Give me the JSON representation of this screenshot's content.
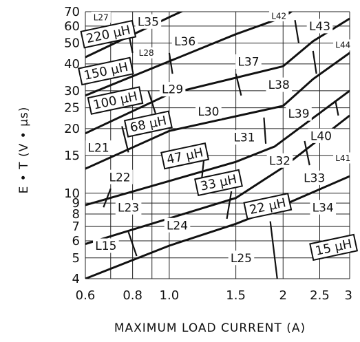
{
  "chart_data": {
    "type": "line",
    "title": "",
    "xlabel": "MAXIMUM LOAD CURRENT (A)",
    "ylabel": "E • T (V • μs)",
    "xscale": "log",
    "yscale": "log",
    "xlim": [
      0.6,
      3
    ],
    "ylim": [
      4,
      70
    ],
    "grid": true,
    "x_ticks": [
      {
        "value": 0.6,
        "label": "0.6"
      },
      {
        "value": 0.8,
        "label": "0.8"
      },
      {
        "value": 1.0,
        "label": "1.0"
      },
      {
        "value": 1.5,
        "label": "1.5"
      },
      {
        "value": 2.0,
        "label": "2"
      },
      {
        "value": 2.5,
        "label": "2.5"
      },
      {
        "value": 3.0,
        "label": "3"
      }
    ],
    "x_gridlines": [
      0.7,
      0.8,
      0.9,
      1.0,
      1.5,
      2.0,
      2.5
    ],
    "y_ticks": [
      {
        "value": 4,
        "label": "4"
      },
      {
        "value": 5,
        "label": "5"
      },
      {
        "value": 6,
        "label": "6"
      },
      {
        "value": 7,
        "label": "7"
      },
      {
        "value": 8,
        "label": "8"
      },
      {
        "value": 9,
        "label": "9"
      },
      {
        "value": 10,
        "label": "10"
      },
      {
        "value": 15,
        "label": "15"
      },
      {
        "value": 20,
        "label": "20"
      },
      {
        "value": 25,
        "label": "25"
      },
      {
        "value": 30,
        "label": "30"
      },
      {
        "value": 40,
        "label": "40"
      },
      {
        "value": 50,
        "label": "50"
      },
      {
        "value": 60,
        "label": "60"
      },
      {
        "value": 70,
        "label": "70"
      }
    ],
    "boundaries": [
      {
        "points": [
          [
            0.6,
            5.8
          ],
          [
            1.5,
            9.5
          ],
          [
            2.0,
            13.2
          ],
          [
            3.0,
            23
          ]
        ]
      },
      {
        "points": [
          [
            0.6,
            8.8
          ],
          [
            1.5,
            14
          ],
          [
            1.9,
            16.5
          ],
          [
            3.0,
            30
          ]
        ]
      },
      {
        "points": [
          [
            0.6,
            13
          ],
          [
            1.0,
            19.5
          ],
          [
            2.0,
            25.5
          ],
          [
            2.4,
            34
          ],
          [
            3.0,
            45
          ]
        ]
      },
      {
        "points": [
          [
            0.6,
            19
          ],
          [
            1.0,
            29
          ],
          [
            2.0,
            39
          ],
          [
            2.4,
            51
          ],
          [
            3.0,
            65
          ]
        ]
      },
      {
        "points": [
          [
            0.6,
            28.5
          ],
          [
            1.5,
            55
          ],
          [
            2.0,
            66
          ],
          [
            2.2,
            74
          ]
        ]
      },
      {
        "points": [
          [
            0.6,
            43
          ],
          [
            1.0,
            66
          ],
          [
            1.15,
            74
          ]
        ]
      },
      {
        "points": [
          [
            0.6,
            4.0
          ],
          [
            1.0,
            5.7
          ],
          [
            1.5,
            7.2
          ],
          [
            2.0,
            8.8
          ],
          [
            3.0,
            12
          ]
        ]
      }
    ],
    "separators": [
      {
        "points": [
          [
            0.82,
            5.1
          ],
          [
            0.78,
            6.6
          ]
        ]
      },
      {
        "points": [
          [
            1.42,
            7.6
          ],
          [
            1.46,
            10.2
          ]
        ]
      },
      {
        "points": [
          [
            1.93,
            4.0
          ],
          [
            1.85,
            7.4
          ]
        ]
      },
      {
        "points": [
          [
            0.67,
            8.6
          ],
          [
            0.7,
            10.5
          ]
        ]
      },
      {
        "points": [
          [
            1.22,
            11.8
          ],
          [
            1.24,
            15.4
          ]
        ]
      },
      {
        "points": [
          [
            2.35,
            13.5
          ],
          [
            2.28,
            17.5
          ]
        ]
      },
      {
        "points": [
          [
            0.78,
            15.5
          ],
          [
            0.75,
            20.5
          ]
        ]
      },
      {
        "points": [
          [
            1.8,
            17.0
          ],
          [
            1.78,
            22.5
          ]
        ]
      },
      {
        "points": [
          [
            2.8,
            23.0
          ],
          [
            2.75,
            27.0
          ]
        ]
      },
      {
        "points": [
          [
            0.92,
            23.5
          ],
          [
            0.88,
            30.0
          ]
        ]
      },
      {
        "points": [
          [
            1.55,
            28.5
          ],
          [
            1.5,
            36.0
          ]
        ]
      },
      {
        "points": [
          [
            2.45,
            36.0
          ],
          [
            2.4,
            46.0
          ]
        ]
      },
      {
        "points": [
          [
            1.02,
            36.0
          ],
          [
            1.0,
            45.0
          ]
        ]
      },
      {
        "points": [
          [
            2.2,
            50.0
          ],
          [
            2.15,
            64.0
          ]
        ]
      },
      {
        "points": [
          [
            0.8,
            45.0
          ],
          [
            0.78,
            56.0
          ]
        ]
      }
    ],
    "regions": [
      {
        "label": "L27",
        "x": 0.66,
        "y": 66,
        "small": true
      },
      {
        "label": "L35",
        "x": 0.88,
        "y": 63
      },
      {
        "label": "L42",
        "x": 1.95,
        "y": 67,
        "small": true
      },
      {
        "label": "L43",
        "x": 2.5,
        "y": 60
      },
      {
        "label": "L28",
        "x": 0.87,
        "y": 45,
        "small": true
      },
      {
        "label": "L36",
        "x": 1.1,
        "y": 51
      },
      {
        "label": "L44",
        "x": 2.88,
        "y": 49,
        "small": true
      },
      {
        "label": "L37",
        "x": 1.62,
        "y": 41
      },
      {
        "label": "L29",
        "x": 1.02,
        "y": 30.5
      },
      {
        "label": "L38",
        "x": 1.95,
        "y": 32
      },
      {
        "label": "L30",
        "x": 1.27,
        "y": 24
      },
      {
        "label": "L39",
        "x": 2.2,
        "y": 23.5
      },
      {
        "label": "L31",
        "x": 1.58,
        "y": 18.2
      },
      {
        "label": "L40",
        "x": 2.52,
        "y": 18.5
      },
      {
        "label": "L21",
        "x": 0.65,
        "y": 16.3
      },
      {
        "label": "L32",
        "x": 1.96,
        "y": 14.2
      },
      {
        "label": "L41",
        "x": 2.88,
        "y": 14.6,
        "small": true
      },
      {
        "label": "L22",
        "x": 0.74,
        "y": 11.9
      },
      {
        "label": "L33",
        "x": 2.42,
        "y": 11.8
      },
      {
        "label": "L23",
        "x": 0.78,
        "y": 8.6
      },
      {
        "label": "L34",
        "x": 2.55,
        "y": 8.6
      },
      {
        "label": "L24",
        "x": 1.05,
        "y": 7.1
      },
      {
        "label": "L15",
        "x": 0.68,
        "y": 5.7
      },
      {
        "label": "L25",
        "x": 1.55,
        "y": 5.0
      }
    ],
    "inductance_labels": [
      {
        "label": "220 μH",
        "x": 0.69,
        "y": 55,
        "rotate": -12
      },
      {
        "label": "150 μH",
        "x": 0.68,
        "y": 37,
        "rotate": -12
      },
      {
        "label": "100 μH",
        "x": 0.72,
        "y": 27,
        "rotate": -12
      },
      {
        "label": "68 μH",
        "x": 0.88,
        "y": 21,
        "rotate": -12
      },
      {
        "label": "47 μH",
        "x": 1.1,
        "y": 14.9,
        "rotate": -12
      },
      {
        "label": "33 μH",
        "x": 1.35,
        "y": 11.2,
        "rotate": -12
      },
      {
        "label": "22 μH",
        "x": 1.82,
        "y": 8.7,
        "rotate": -12
      },
      {
        "label": "15 μH",
        "x": 2.72,
        "y": 5.6,
        "rotate": -12
      }
    ]
  }
}
